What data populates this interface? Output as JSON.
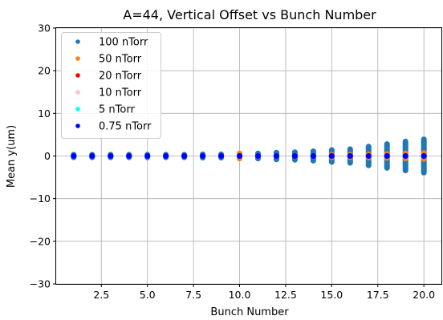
{
  "chart_data": {
    "type": "scatter",
    "title": "A=44, Vertical Offset vs Bunch Number",
    "xlabel": "Bunch Number",
    "ylabel": "Mean y(um)",
    "xlim": [
      0.05,
      20.95
    ],
    "ylim": [
      -30,
      30
    ],
    "xticks": [
      2.5,
      5.0,
      7.5,
      10.0,
      12.5,
      15.0,
      17.5,
      20.0
    ],
    "xtick_labels": [
      "2.5",
      "5.0",
      "7.5",
      "10.0",
      "12.5",
      "15.0",
      "17.5",
      "20.0"
    ],
    "yticks": [
      -30,
      -20,
      -10,
      0,
      10,
      20,
      30
    ],
    "ytick_labels": [
      "−30",
      "−20",
      "−10",
      "0",
      "10",
      "20",
      "30"
    ],
    "grid": true,
    "legend_position": "top-left",
    "bunches": [
      1,
      2,
      3,
      4,
      5,
      6,
      7,
      8,
      9,
      10,
      11,
      12,
      13,
      14,
      15,
      16,
      17,
      18,
      19,
      20
    ],
    "series": [
      {
        "name": "100 nTorr",
        "color": "#1f77b4",
        "y_spread": [
          0.3,
          0.3,
          0.3,
          0.3,
          0.3,
          0.3,
          0.3,
          0.4,
          0.4,
          0.5,
          0.6,
          0.8,
          0.9,
          1.1,
          1.4,
          1.6,
          2.2,
          2.8,
          3.4,
          3.9
        ]
      },
      {
        "name": "50 nTorr",
        "color": "#ff7f0e",
        "y_spread": [
          0.1,
          0.1,
          0.1,
          0.1,
          0.1,
          0.1,
          0.1,
          0.1,
          0.1,
          0.6,
          0.2,
          0.2,
          0.2,
          0.2,
          0.3,
          0.3,
          0.4,
          0.5,
          0.6,
          0.7
        ]
      },
      {
        "name": "20 nTorr",
        "color": "#ff0000",
        "y_spread": [
          0.05,
          0.05,
          0.05,
          0.05,
          0.05,
          0.05,
          0.05,
          0.05,
          0.05,
          0.1,
          0.05,
          0.05,
          0.05,
          0.05,
          0.05,
          0.05,
          0.05,
          0.05,
          0.05,
          0.05
        ]
      },
      {
        "name": "10 nTorr",
        "color": "#ffc0cb",
        "y_spread": [
          0.05,
          0.05,
          0.05,
          0.05,
          0.05,
          0.05,
          0.05,
          0.05,
          0.05,
          0.05,
          0.05,
          0.05,
          0.05,
          0.05,
          0.05,
          0.05,
          0.05,
          0.05,
          0.05,
          0.05
        ]
      },
      {
        "name": "5 nTorr",
        "color": "#00ffff",
        "y_spread": [
          0.05,
          0.05,
          0.05,
          0.05,
          0.05,
          0.05,
          0.05,
          0.05,
          0.05,
          0.05,
          0.05,
          0.05,
          0.05,
          0.05,
          0.05,
          0.05,
          0.05,
          0.05,
          0.05,
          0.05
        ]
      },
      {
        "name": "0.75 nTorr",
        "color": "#0000ff",
        "y_spread": [
          0.0,
          0.0,
          0.0,
          0.0,
          0.0,
          0.0,
          0.0,
          0.0,
          0.0,
          0.0,
          0.0,
          0.0,
          0.0,
          0.0,
          0.0,
          0.0,
          0.0,
          0.0,
          0.0,
          0.0
        ]
      }
    ]
  }
}
